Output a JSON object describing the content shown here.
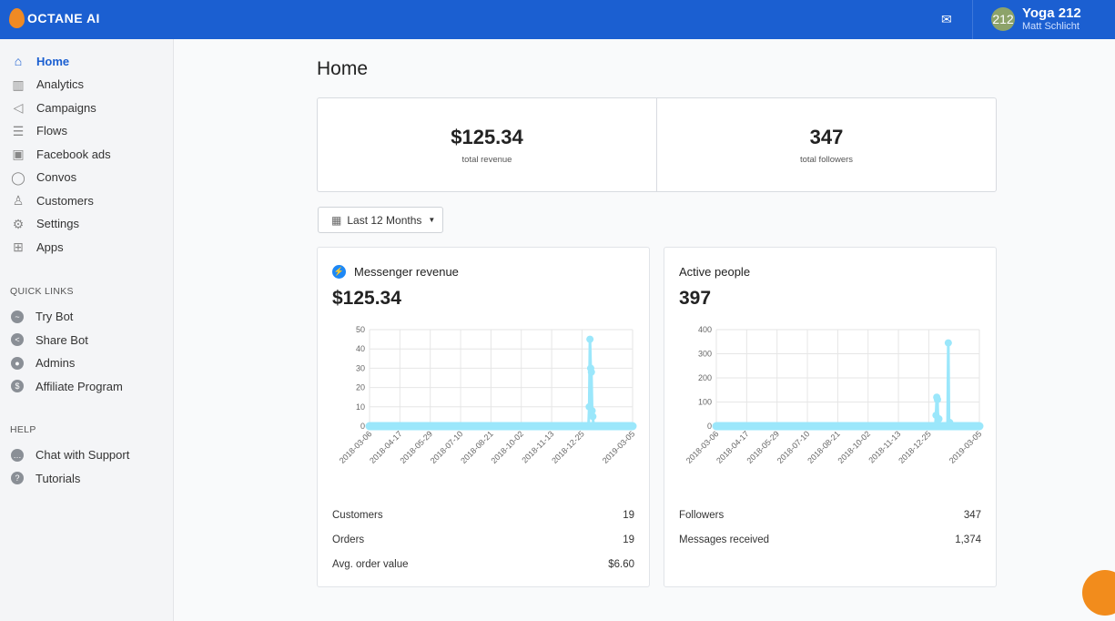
{
  "header": {
    "brand": "OCTANE AI",
    "mail_icon": "mail-icon",
    "account": {
      "avatar_text": "212",
      "name": "Yoga 212",
      "user": "Matt Schlicht"
    }
  },
  "sidebar": {
    "items": [
      {
        "label": "Home",
        "icon": "home-icon",
        "active": true
      },
      {
        "label": "Analytics",
        "icon": "bar-chart-icon"
      },
      {
        "label": "Campaigns",
        "icon": "megaphone-icon"
      },
      {
        "label": "Flows",
        "icon": "flows-icon"
      },
      {
        "label": "Facebook ads",
        "icon": "facebook-icon"
      },
      {
        "label": "Convos",
        "icon": "chat-bubble-icon"
      },
      {
        "label": "Customers",
        "icon": "user-icon"
      },
      {
        "label": "Settings",
        "icon": "gear-icon"
      },
      {
        "label": "Apps",
        "icon": "apps-icon"
      }
    ],
    "quick_links_heading": "QUICK LINKS",
    "quick_links": [
      {
        "label": "Try Bot",
        "icon": "messenger-icon"
      },
      {
        "label": "Share Bot",
        "icon": "share-icon"
      },
      {
        "label": "Admins",
        "icon": "user-circle-icon"
      },
      {
        "label": "Affiliate Program",
        "icon": "dollar-icon"
      }
    ],
    "help_heading": "HELP",
    "help": [
      {
        "label": "Chat with Support",
        "icon": "chat-icon"
      },
      {
        "label": "Tutorials",
        "icon": "question-icon"
      }
    ]
  },
  "main": {
    "title": "Home",
    "stats": [
      {
        "value": "$125.34",
        "label": "total revenue"
      },
      {
        "value": "347",
        "label": "total followers"
      }
    ],
    "range": "Last 12 Months",
    "cards": [
      {
        "title": "Messenger revenue",
        "value": "$125.34",
        "rows": [
          {
            "label": "Customers",
            "value": "19"
          },
          {
            "label": "Orders",
            "value": "19"
          },
          {
            "label": "Avg. order value",
            "value": "$6.60"
          }
        ]
      },
      {
        "title": "Active people",
        "value": "397",
        "rows": [
          {
            "label": "Followers",
            "value": "347"
          },
          {
            "label": "Messages received",
            "value": "1,374"
          }
        ]
      }
    ]
  },
  "chart_data": [
    {
      "type": "line",
      "color": "#9be7fb",
      "xlim": [
        "2018-03-06",
        "2019-03-05"
      ],
      "ylim": [
        0,
        50
      ],
      "yticks": [
        0,
        10,
        20,
        30,
        40,
        50
      ],
      "xticks": [
        "2018-03-06",
        "2018-04-17",
        "2018-05-29",
        "2018-07-10",
        "2018-08-21",
        "2018-10-02",
        "2018-11-13",
        "2018-12-25",
        "2019-03-05"
      ],
      "grid": true,
      "points": [
        [
          "2019-01-04",
          10
        ],
        [
          "2019-01-05",
          45
        ],
        [
          "2019-01-06",
          30
        ],
        [
          "2019-01-07",
          28
        ],
        [
          "2019-01-08",
          8
        ],
        [
          "2019-01-09",
          5
        ]
      ],
      "default_value": 0
    },
    {
      "type": "line",
      "color": "#9be7fb",
      "xlim": [
        "2018-03-06",
        "2019-03-05"
      ],
      "ylim": [
        0,
        400
      ],
      "yticks": [
        0,
        100,
        200,
        300,
        400
      ],
      "xticks": [
        "2018-03-06",
        "2018-04-17",
        "2018-05-29",
        "2018-07-10",
        "2018-08-21",
        "2018-10-02",
        "2018-11-13",
        "2018-12-25",
        "2019-03-05"
      ],
      "grid": true,
      "points": [
        [
          "2019-01-04",
          45
        ],
        [
          "2019-01-05",
          120
        ],
        [
          "2019-01-06",
          110
        ],
        [
          "2019-01-08",
          30
        ],
        [
          "2019-01-21",
          345
        ],
        [
          "2019-01-23",
          15
        ]
      ],
      "default_value": 0
    }
  ]
}
